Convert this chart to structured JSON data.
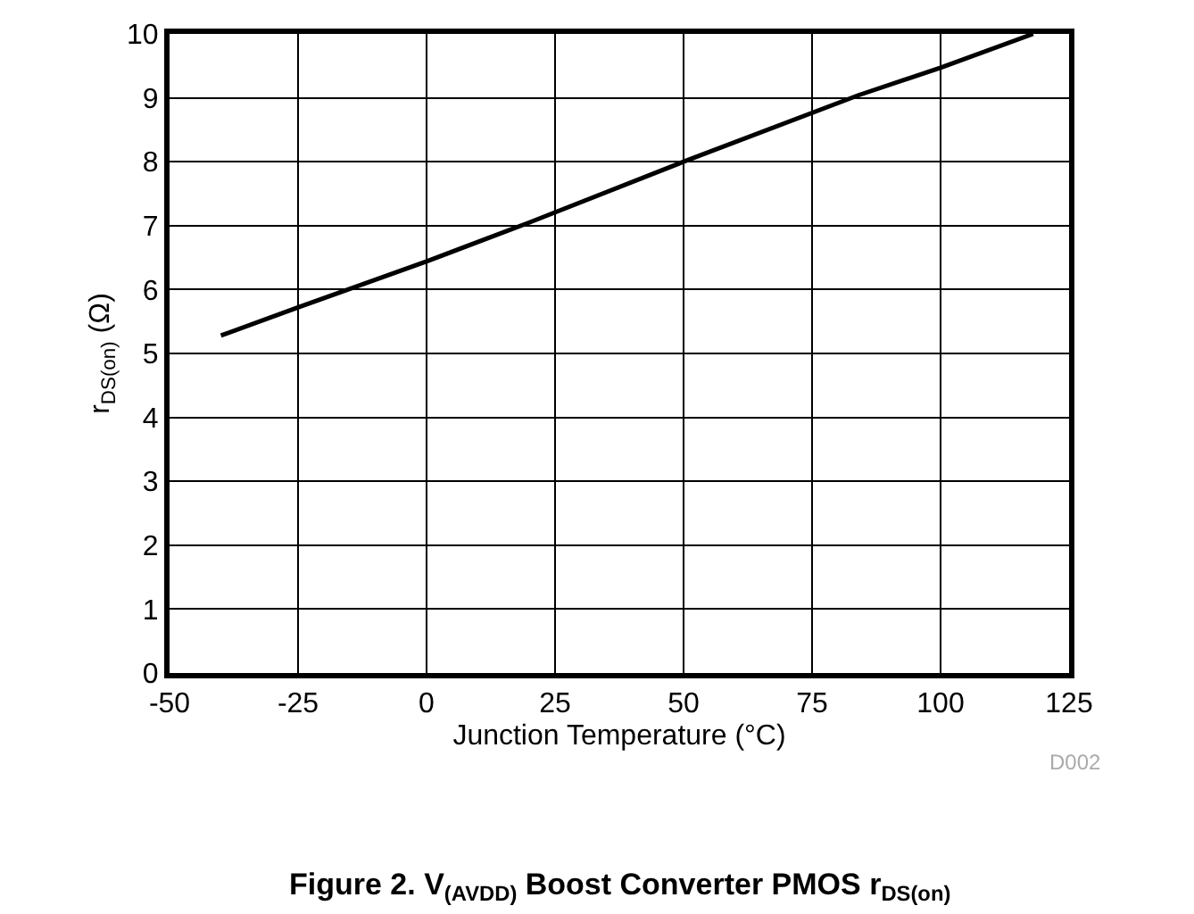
{
  "chart_data": {
    "type": "line",
    "title": "Figure 2. V$_{(AVDD)}$ Boost Converter PMOS r$_{DS(on)}$",
    "xlabel": "Junction Temperature (°C)",
    "ylabel": "r$_{DS(on)}$ (Ω)",
    "x": [
      -40,
      -25,
      0,
      20,
      50,
      84,
      100,
      118
    ],
    "series": [
      {
        "color": "#000000",
        "values": [
          5.28,
          5.72,
          6.44,
          7.05,
          8.0,
          9.04,
          9.47,
          10.0
        ]
      }
    ],
    "xlim": [
      -50,
      125
    ],
    "xticks": [
      -50,
      -25,
      0,
      25,
      50,
      75,
      100,
      125
    ],
    "ylim": [
      0,
      10
    ],
    "yticks": [
      0,
      1,
      2,
      3,
      4,
      5,
      6,
      7,
      8,
      9,
      10
    ],
    "grid": true,
    "marker": "none",
    "line_style": "solid",
    "annotations": [
      "D002"
    ]
  }
}
